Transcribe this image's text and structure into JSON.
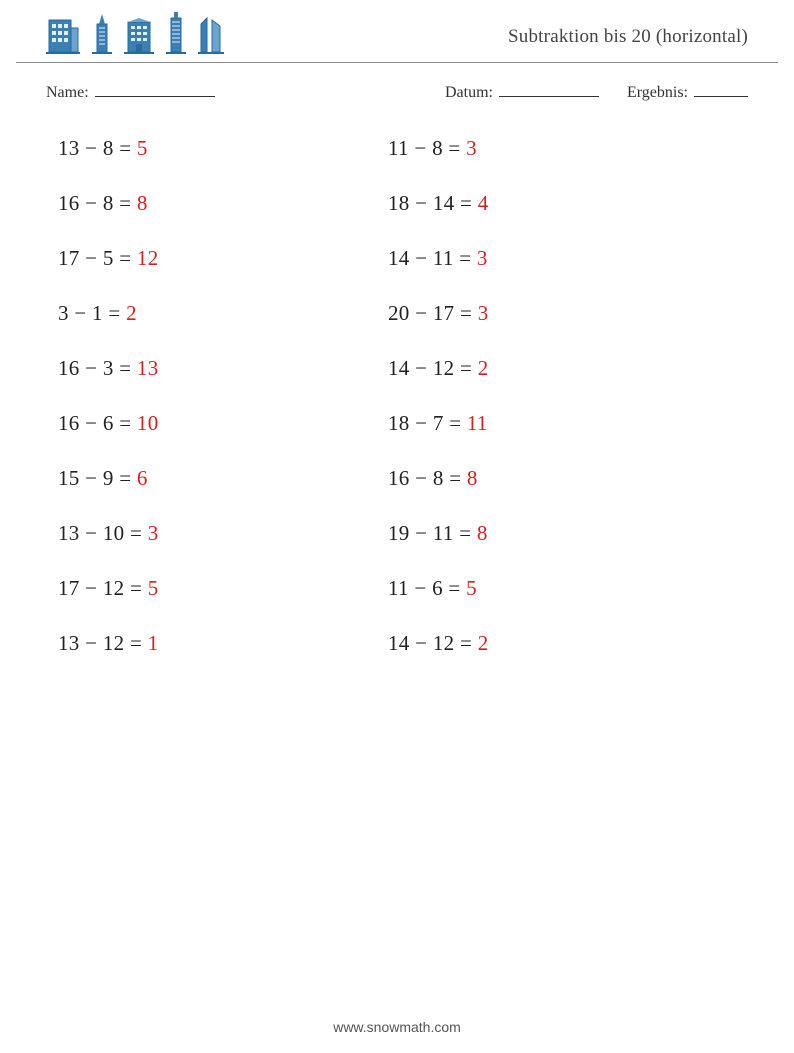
{
  "header": {
    "title": "Subtraktion bis 20 (horizontal)",
    "building_color": "#3b7fb5",
    "building_stroke": "#2a6a9e"
  },
  "meta": {
    "name_label": "Name:",
    "date_label": "Datum:",
    "result_label": "Ergebnis:",
    "name_blank_width": 120,
    "date_blank_width": 100,
    "result_blank_width": 54
  },
  "styles": {
    "text_color": "#222222",
    "answer_color": "#d62020",
    "problem_fontsize": 21,
    "row_gap": 30,
    "left_col_width": 330
  },
  "problems": {
    "minus": "−",
    "equals": "=",
    "rows": [
      {
        "l": {
          "a": 13,
          "b": 8,
          "r": 5
        },
        "r": {
          "a": 11,
          "b": 8,
          "r": 3
        }
      },
      {
        "l": {
          "a": 16,
          "b": 8,
          "r": 8
        },
        "r": {
          "a": 18,
          "b": 14,
          "r": 4
        }
      },
      {
        "l": {
          "a": 17,
          "b": 5,
          "r": 12
        },
        "r": {
          "a": 14,
          "b": 11,
          "r": 3
        }
      },
      {
        "l": {
          "a": 3,
          "b": 1,
          "r": 2
        },
        "r": {
          "a": 20,
          "b": 17,
          "r": 3
        }
      },
      {
        "l": {
          "a": 16,
          "b": 3,
          "r": 13
        },
        "r": {
          "a": 14,
          "b": 12,
          "r": 2
        }
      },
      {
        "l": {
          "a": 16,
          "b": 6,
          "r": 10
        },
        "r": {
          "a": 18,
          "b": 7,
          "r": 11
        }
      },
      {
        "l": {
          "a": 15,
          "b": 9,
          "r": 6
        },
        "r": {
          "a": 16,
          "b": 8,
          "r": 8
        }
      },
      {
        "l": {
          "a": 13,
          "b": 10,
          "r": 3
        },
        "r": {
          "a": 19,
          "b": 11,
          "r": 8
        }
      },
      {
        "l": {
          "a": 17,
          "b": 12,
          "r": 5
        },
        "r": {
          "a": 11,
          "b": 6,
          "r": 5
        }
      },
      {
        "l": {
          "a": 13,
          "b": 12,
          "r": 1
        },
        "r": {
          "a": 14,
          "b": 12,
          "r": 2
        }
      }
    ]
  },
  "footer": {
    "text": "www.snowmath.com"
  }
}
